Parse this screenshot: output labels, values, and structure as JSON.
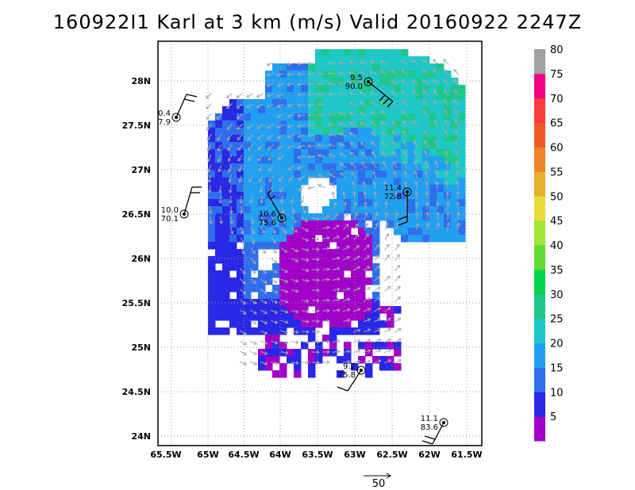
{
  "title": "160922I1 Karl at 3 km (m/s) Valid 20160922 2247Z",
  "lon_ticks": [
    "65.5W",
    "65W",
    "64.5W",
    "64W",
    "63.5W",
    "63W",
    "62.5W",
    "62W",
    "61.5W"
  ],
  "lat_ticks": [
    "28N",
    "27.5N",
    "27N",
    "26.5N",
    "26N",
    "25.5N",
    "25N",
    "24.5N",
    "24N"
  ],
  "colorbar": {
    "labels": [
      "5",
      "10",
      "15",
      "20",
      "25",
      "30",
      "35",
      "40",
      "45",
      "50",
      "55",
      "60",
      "65",
      "70",
      "75",
      "80"
    ],
    "colors": [
      "#a000c8",
      "#2828e6",
      "#2f6fee",
      "#21a0f0",
      "#1ec8c8",
      "#1ec88c",
      "#00d24a",
      "#60dc32",
      "#a0e632",
      "#e6dc32",
      "#e6af2d",
      "#f08228",
      "#f05a28",
      "#fa3c3c",
      "#f00082",
      "#a0a0a0"
    ]
  },
  "scale_arrow": {
    "label": "50"
  },
  "stations": [
    {
      "speed": "0.4",
      "dir": "7.9"
    },
    {
      "speed": "10.0",
      "dir": "70.1"
    },
    {
      "speed": "10.6",
      "dir": "75.6"
    },
    {
      "speed": "9.5",
      "dir": "90.0"
    },
    {
      "speed": "11.4",
      "dir": "72.8"
    },
    {
      "speed": "9.2",
      "dir": "75.8"
    },
    {
      "speed": "11.1",
      "dir": "83.6"
    }
  ]
}
